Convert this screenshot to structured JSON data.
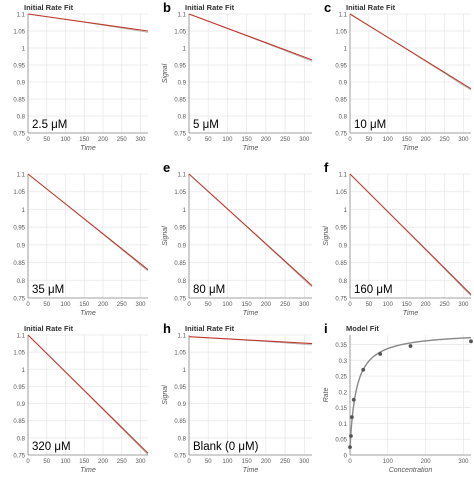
{
  "figure": {
    "panels": [
      {
        "letter": "",
        "title": "Initial Rate Fit",
        "label": "2.5 μM",
        "ylabel": "",
        "xlabel": "Time"
      },
      {
        "letter": "b",
        "title": "Initial Rate Fit",
        "label": "5 μM",
        "ylabel": "Signal",
        "xlabel": "Time"
      },
      {
        "letter": "c",
        "title": "Initial Rate Fit",
        "label": "10 μM",
        "ylabel": "",
        "xlabel": "Time"
      },
      {
        "letter": "",
        "title": "",
        "label": "35 μM",
        "ylabel": "",
        "xlabel": "Time"
      },
      {
        "letter": "e",
        "title": "",
        "label": "80 μM",
        "ylabel": "Signal",
        "xlabel": "Time"
      },
      {
        "letter": "f",
        "title": "",
        "label": "160 μM",
        "ylabel": "Signal",
        "xlabel": "Time"
      },
      {
        "letter": "",
        "title": "Initial Rate Fit",
        "label": "320 μM",
        "ylabel": "",
        "xlabel": "Time"
      },
      {
        "letter": "h",
        "title": "Initial Rate Fit",
        "label": "Blank (0 μM)",
        "ylabel": "Signal",
        "xlabel": "Time"
      },
      {
        "letter": "i",
        "title": "Model Fit",
        "label": "",
        "ylabel": "Rate",
        "xlabel": "Concentration"
      }
    ]
  },
  "colors": {
    "fit_line": "#c0392b",
    "data_line": "#aaaaaa",
    "model_curve": "#888888",
    "model_points": "#555555",
    "axis_text": "#555555",
    "grid": "#e6e6e6"
  },
  "chart_data": [
    {
      "type": "line",
      "xlabel": "Time",
      "ylabel": "",
      "xlim": [
        0,
        320
      ],
      "ylim": [
        0.75,
        1.1
      ],
      "xticks": [
        0,
        50,
        100,
        150,
        200,
        250,
        300
      ],
      "yticks": [
        0.75,
        0.8,
        0.85,
        0.9,
        0.95,
        1,
        1.05,
        1.1
      ],
      "series": [
        {
          "x": [
            0,
            320
          ],
          "y": [
            1.1,
            1.05
          ]
        }
      ]
    },
    {
      "type": "line",
      "xlabel": "Time",
      "ylabel": "Signal",
      "xlim": [
        0,
        320
      ],
      "ylim": [
        0.75,
        1.1
      ],
      "xticks": [
        0,
        50,
        100,
        150,
        200,
        250,
        300
      ],
      "yticks": [
        0.75,
        0.8,
        0.85,
        0.9,
        0.95,
        1,
        1.05,
        1.1
      ],
      "series": [
        {
          "x": [
            0,
            320
          ],
          "y": [
            1.1,
            0.965
          ]
        }
      ]
    },
    {
      "type": "line",
      "xlabel": "Time",
      "ylabel": "",
      "xlim": [
        0,
        320
      ],
      "ylim": [
        0.75,
        1.1
      ],
      "xticks": [
        0,
        50,
        100,
        150,
        200,
        250,
        300
      ],
      "yticks": [
        0.75,
        0.8,
        0.85,
        0.9,
        0.95,
        1,
        1.05,
        1.1
      ],
      "series": [
        {
          "x": [
            0,
            320
          ],
          "y": [
            1.1,
            0.88
          ]
        }
      ]
    },
    {
      "type": "line",
      "xlabel": "Time",
      "ylabel": "",
      "xlim": [
        0,
        320
      ],
      "ylim": [
        0.75,
        1.1
      ],
      "xticks": [
        0,
        50,
        100,
        150,
        200,
        250,
        300
      ],
      "yticks": [
        0.75,
        0.8,
        0.85,
        0.9,
        0.95,
        1,
        1.05,
        1.1
      ],
      "series": [
        {
          "x": [
            0,
            320
          ],
          "y": [
            1.1,
            0.83
          ]
        }
      ]
    },
    {
      "type": "line",
      "xlabel": "Time",
      "ylabel": "Signal",
      "xlim": [
        0,
        320
      ],
      "ylim": [
        0.75,
        1.1
      ],
      "xticks": [
        0,
        50,
        100,
        150,
        200,
        250,
        300
      ],
      "yticks": [
        0.75,
        0.8,
        0.85,
        0.9,
        0.95,
        1,
        1.05,
        1.1
      ],
      "series": [
        {
          "x": [
            0,
            320
          ],
          "y": [
            1.1,
            0.785
          ]
        }
      ]
    },
    {
      "type": "line",
      "xlabel": "Time",
      "ylabel": "Signal",
      "xlim": [
        0,
        320
      ],
      "ylim": [
        0.75,
        1.1
      ],
      "xticks": [
        0,
        50,
        100,
        150,
        200,
        250,
        300
      ],
      "yticks": [
        0.75,
        0.8,
        0.85,
        0.9,
        0.95,
        1,
        1.05,
        1.1
      ],
      "series": [
        {
          "x": [
            0,
            320
          ],
          "y": [
            1.1,
            0.76
          ]
        }
      ]
    },
    {
      "type": "line",
      "xlabel": "Time",
      "ylabel": "",
      "xlim": [
        0,
        320
      ],
      "ylim": [
        0.75,
        1.1
      ],
      "xticks": [
        0,
        50,
        100,
        150,
        200,
        250,
        300
      ],
      "yticks": [
        0.75,
        0.8,
        0.85,
        0.9,
        0.95,
        1,
        1.05,
        1.1
      ],
      "series": [
        {
          "x": [
            0,
            320
          ],
          "y": [
            1.1,
            0.755
          ]
        }
      ]
    },
    {
      "type": "line",
      "xlabel": "Time",
      "ylabel": "Signal",
      "xlim": [
        0,
        320
      ],
      "ylim": [
        0.75,
        1.1
      ],
      "xticks": [
        0,
        50,
        100,
        150,
        200,
        250,
        300
      ],
      "yticks": [
        0.75,
        0.8,
        0.85,
        0.9,
        0.95,
        1,
        1.05,
        1.1
      ],
      "series": [
        {
          "x": [
            0,
            320
          ],
          "y": [
            1.095,
            1.075
          ]
        }
      ]
    },
    {
      "type": "scatter",
      "xlabel": "Concentration",
      "ylabel": "Rate",
      "xlim": [
        0,
        320
      ],
      "ylim": [
        0,
        0.38
      ],
      "xticks": [
        0,
        100,
        200,
        300
      ],
      "yticks": [
        0,
        0.05,
        0.1,
        0.15,
        0.2,
        0.25,
        0.3,
        0.35
      ],
      "points": {
        "x": [
          0,
          2.5,
          5,
          10,
          35,
          80,
          160,
          320
        ],
        "y": [
          0.025,
          0.06,
          0.12,
          0.175,
          0.27,
          0.32,
          0.345,
          0.36
        ]
      },
      "model": {
        "vmax": 0.39,
        "km": 17,
        "baseline": 0.025
      }
    }
  ]
}
